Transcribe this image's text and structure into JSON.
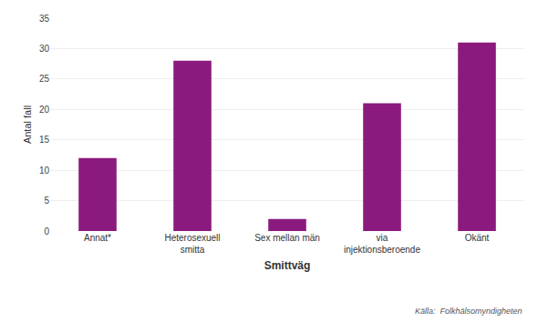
{
  "chart_data": {
    "type": "bar",
    "categories": [
      "Annat*",
      "Heterosexuell\nsmitta",
      "Sex mellan män",
      "via\ninjektionsberoende",
      "Okänt"
    ],
    "values": [
      12,
      28,
      2,
      21,
      31
    ],
    "color": "#8B1A7E",
    "ylabel": "Antal fall",
    "xlabel": "Smittväg",
    "ylim": [
      0,
      35
    ],
    "yticks": [
      0,
      5,
      10,
      15,
      20,
      25,
      30,
      35
    ],
    "grid": true,
    "annotations": [
      "Källa:  Folkhälsomyndigheten"
    ]
  }
}
